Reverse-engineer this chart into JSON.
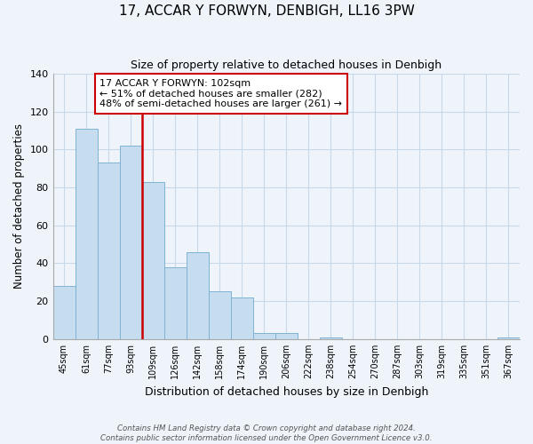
{
  "title": "17, ACCAR Y FORWYN, DENBIGH, LL16 3PW",
  "subtitle": "Size of property relative to detached houses in Denbigh",
  "xlabel": "Distribution of detached houses by size in Denbigh",
  "ylabel": "Number of detached properties",
  "bin_labels": [
    "45sqm",
    "61sqm",
    "77sqm",
    "93sqm",
    "109sqm",
    "126sqm",
    "142sqm",
    "158sqm",
    "174sqm",
    "190sqm",
    "206sqm",
    "222sqm",
    "238sqm",
    "254sqm",
    "270sqm",
    "287sqm",
    "303sqm",
    "319sqm",
    "335sqm",
    "351sqm",
    "367sqm"
  ],
  "bar_heights": [
    28,
    111,
    93,
    102,
    83,
    38,
    46,
    25,
    22,
    3,
    3,
    0,
    1,
    0,
    0,
    0,
    0,
    0,
    0,
    0,
    1
  ],
  "bar_color": "#c5ddef",
  "bar_edge_color": "#7fb3d3",
  "marker_line_color": "#cc0000",
  "annotation_text": "17 ACCAR Y FORWYN: 102sqm\n← 51% of detached houses are smaller (282)\n48% of semi-detached houses are larger (261) →",
  "annotation_box_color": "#ffffff",
  "annotation_box_edge": "#cc0000",
  "ylim": [
    0,
    140
  ],
  "yticks": [
    0,
    20,
    40,
    60,
    80,
    100,
    120,
    140
  ],
  "footer_line1": "Contains HM Land Registry data © Crown copyright and database right 2024.",
  "footer_line2": "Contains public sector information licensed under the Open Government Licence v3.0.",
  "background_color": "#eef4fa",
  "grid_color": "#c8d8e8",
  "title_fontsize": 11,
  "subtitle_fontsize": 9
}
